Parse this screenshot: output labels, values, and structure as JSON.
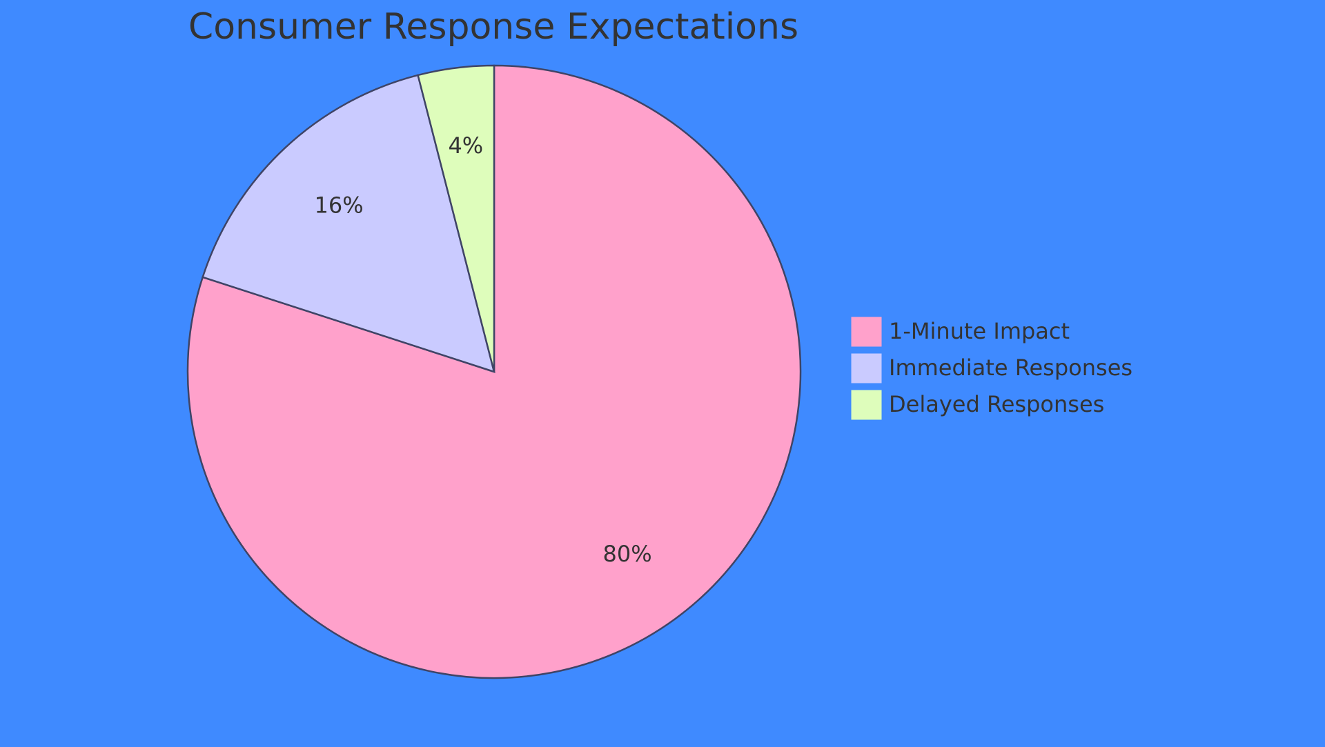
{
  "chart_data": {
    "type": "pie",
    "title": "Consumer Response Expectations",
    "categories": [
      "1-Minute Impact",
      "Immediate Responses",
      "Delayed Responses"
    ],
    "values": [
      80,
      16,
      4
    ],
    "value_labels": [
      "80%",
      "16%",
      "4%"
    ],
    "colors": [
      "#ffa1cb",
      "#cacbff",
      "#defdbb"
    ],
    "legend": "right"
  }
}
